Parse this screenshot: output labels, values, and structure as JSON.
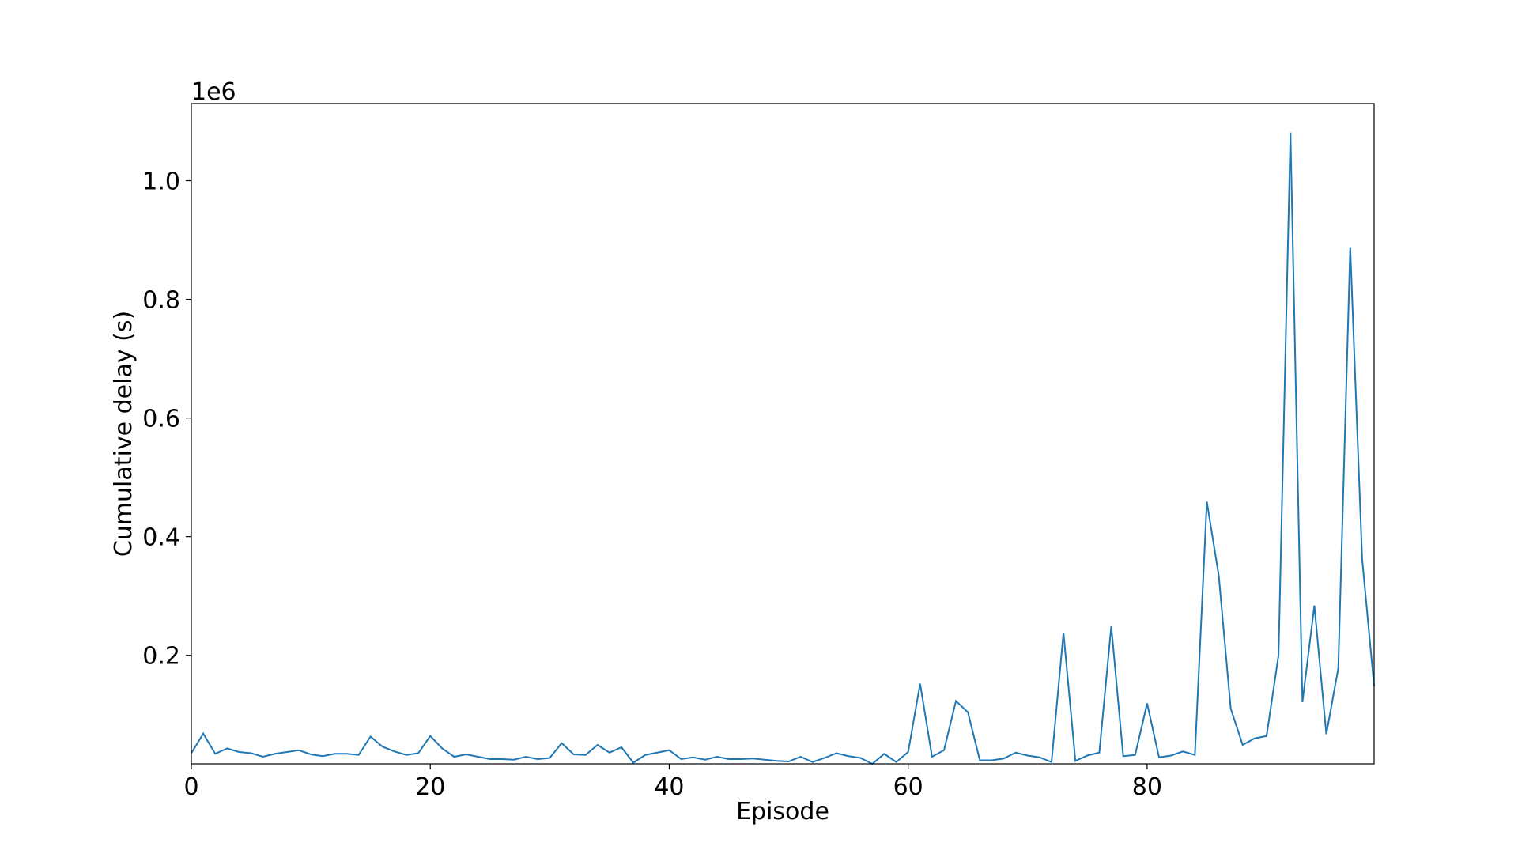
{
  "chart_data": {
    "type": "line",
    "xlabel": "Episode",
    "ylabel": "Cumulative delay (s)",
    "y_offset_label": "1e6",
    "xlim": [
      0,
      99
    ],
    "ylim": [
      0.017,
      1.13
    ],
    "x_ticks": [
      0,
      20,
      40,
      60,
      80
    ],
    "y_ticks": [
      0.2,
      0.4,
      0.6,
      0.8,
      1.0
    ],
    "x_tick_labels": [
      "0",
      "20",
      "40",
      "60",
      "80"
    ],
    "y_tick_labels": [
      "0.2",
      "0.4",
      "0.6",
      "0.8",
      "1.0"
    ],
    "grid": false,
    "legend": "none",
    "series": [
      {
        "color": "#1f77b4",
        "x": [
          0,
          1,
          2,
          3,
          4,
          5,
          6,
          7,
          8,
          9,
          10,
          11,
          12,
          13,
          14,
          15,
          16,
          17,
          18,
          19,
          20,
          21,
          22,
          23,
          24,
          25,
          26,
          27,
          28,
          29,
          30,
          31,
          32,
          33,
          34,
          35,
          36,
          37,
          38,
          39,
          40,
          41,
          42,
          43,
          44,
          45,
          46,
          47,
          48,
          49,
          50,
          51,
          52,
          53,
          54,
          55,
          56,
          57,
          58,
          59,
          60,
          61,
          62,
          63,
          64,
          65,
          66,
          67,
          68,
          69,
          70,
          71,
          72,
          73,
          74,
          75,
          76,
          77,
          78,
          79,
          80,
          81,
          82,
          83,
          84,
          85,
          86,
          87,
          88,
          89,
          90,
          91,
          92,
          93,
          94,
          95,
          96,
          97,
          98,
          99
        ],
        "values": [
          0.035,
          0.068,
          0.034,
          0.043,
          0.037,
          0.035,
          0.029,
          0.034,
          0.037,
          0.04,
          0.033,
          0.03,
          0.034,
          0.034,
          0.032,
          0.063,
          0.046,
          0.038,
          0.032,
          0.035,
          0.064,
          0.043,
          0.029,
          0.033,
          0.029,
          0.025,
          0.025,
          0.024,
          0.029,
          0.025,
          0.027,
          0.052,
          0.033,
          0.032,
          0.049,
          0.036,
          0.045,
          0.019,
          0.032,
          0.036,
          0.04,
          0.025,
          0.028,
          0.024,
          0.029,
          0.025,
          0.025,
          0.026,
          0.024,
          0.022,
          0.021,
          0.029,
          0.02,
          0.027,
          0.035,
          0.03,
          0.027,
          0.017,
          0.034,
          0.02,
          0.037,
          0.152,
          0.029,
          0.04,
          0.123,
          0.104,
          0.023,
          0.023,
          0.026,
          0.036,
          0.031,
          0.028,
          0.02,
          0.238,
          0.022,
          0.031,
          0.036,
          0.249,
          0.03,
          0.032,
          0.119,
          0.028,
          0.031,
          0.038,
          0.032,
          0.459,
          0.334,
          0.11,
          0.049,
          0.06,
          0.064,
          0.2,
          1.081,
          0.121,
          0.284,
          0.067,
          0.178,
          0.888,
          0.362,
          0.148
        ]
      }
    ]
  }
}
